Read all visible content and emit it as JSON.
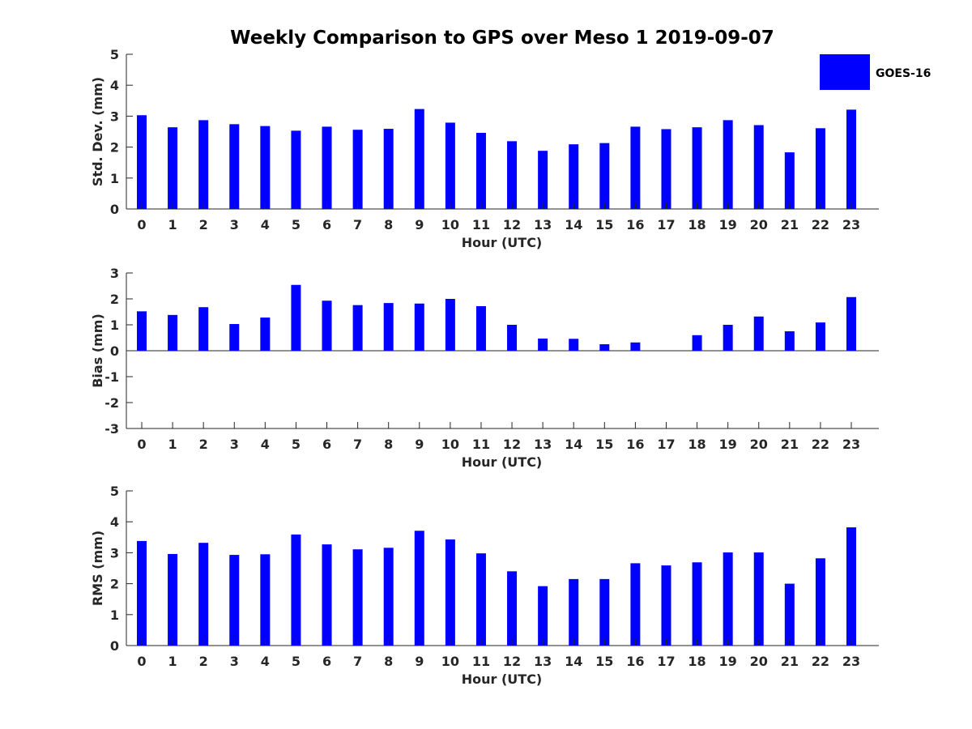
{
  "figure": {
    "title": "Weekly Comparison to GPS over Meso 1 2019-09-07"
  },
  "legend": {
    "label": "GOES-16",
    "color": "#0000ff"
  },
  "chart_data": [
    {
      "type": "bar",
      "title": "Weekly Comparison to GPS over Meso 1 2019-09-07",
      "xlabel": "Hour (UTC)",
      "ylabel": "Std. Dev. (mm)",
      "ylim": [
        0,
        5
      ],
      "yticks": [
        "0",
        "1",
        "2",
        "3",
        "4",
        "5"
      ],
      "categories": [
        "0",
        "1",
        "2",
        "3",
        "4",
        "5",
        "6",
        "7",
        "8",
        "9",
        "10",
        "11",
        "12",
        "13",
        "14",
        "15",
        "16",
        "17",
        "18",
        "19",
        "20",
        "21",
        "22",
        "23"
      ],
      "series": [
        {
          "name": "GOES-16",
          "color": "#0000ff",
          "values": [
            3.03,
            2.64,
            2.87,
            2.74,
            2.68,
            2.53,
            2.66,
            2.56,
            2.59,
            3.23,
            2.79,
            2.46,
            2.19,
            1.88,
            2.09,
            2.13,
            2.66,
            2.58,
            2.64,
            2.87,
            2.71,
            1.83,
            2.61,
            3.21
          ]
        }
      ]
    },
    {
      "type": "bar",
      "xlabel": "Hour (UTC)",
      "ylabel": "Bias (mm)",
      "ylim": [
        -3,
        3
      ],
      "yticks": [
        "-3",
        "-2",
        "-1",
        "0",
        "1",
        "2",
        "3"
      ],
      "categories": [
        "0",
        "1",
        "2",
        "3",
        "4",
        "5",
        "6",
        "7",
        "8",
        "9",
        "10",
        "11",
        "12",
        "13",
        "14",
        "15",
        "16",
        "17",
        "18",
        "19",
        "20",
        "21",
        "22",
        "23"
      ],
      "series": [
        {
          "name": "GOES-16",
          "color": "#0000ff",
          "values": [
            1.52,
            1.38,
            1.68,
            1.03,
            1.28,
            2.54,
            1.93,
            1.76,
            1.84,
            1.82,
            2.0,
            1.72,
            1.0,
            0.47,
            0.46,
            0.25,
            0.32,
            0.0,
            0.6,
            1.0,
            1.32,
            0.75,
            1.09,
            2.07
          ]
        }
      ]
    },
    {
      "type": "bar",
      "xlabel": "Hour (UTC)",
      "ylabel": "RMS (mm)",
      "ylim": [
        0,
        5
      ],
      "yticks": [
        "0",
        "1",
        "2",
        "3",
        "4",
        "5"
      ],
      "categories": [
        "0",
        "1",
        "2",
        "3",
        "4",
        "5",
        "6",
        "7",
        "8",
        "9",
        "10",
        "11",
        "12",
        "13",
        "14",
        "15",
        "16",
        "17",
        "18",
        "19",
        "20",
        "21",
        "22",
        "23"
      ],
      "series": [
        {
          "name": "GOES-16",
          "color": "#0000ff",
          "values": [
            3.38,
            2.96,
            3.32,
            2.93,
            2.95,
            3.59,
            3.27,
            3.11,
            3.16,
            3.71,
            3.43,
            2.98,
            2.4,
            1.92,
            2.15,
            2.15,
            2.66,
            2.59,
            2.69,
            3.01,
            3.01,
            2.0,
            2.82,
            3.82
          ]
        }
      ]
    }
  ]
}
